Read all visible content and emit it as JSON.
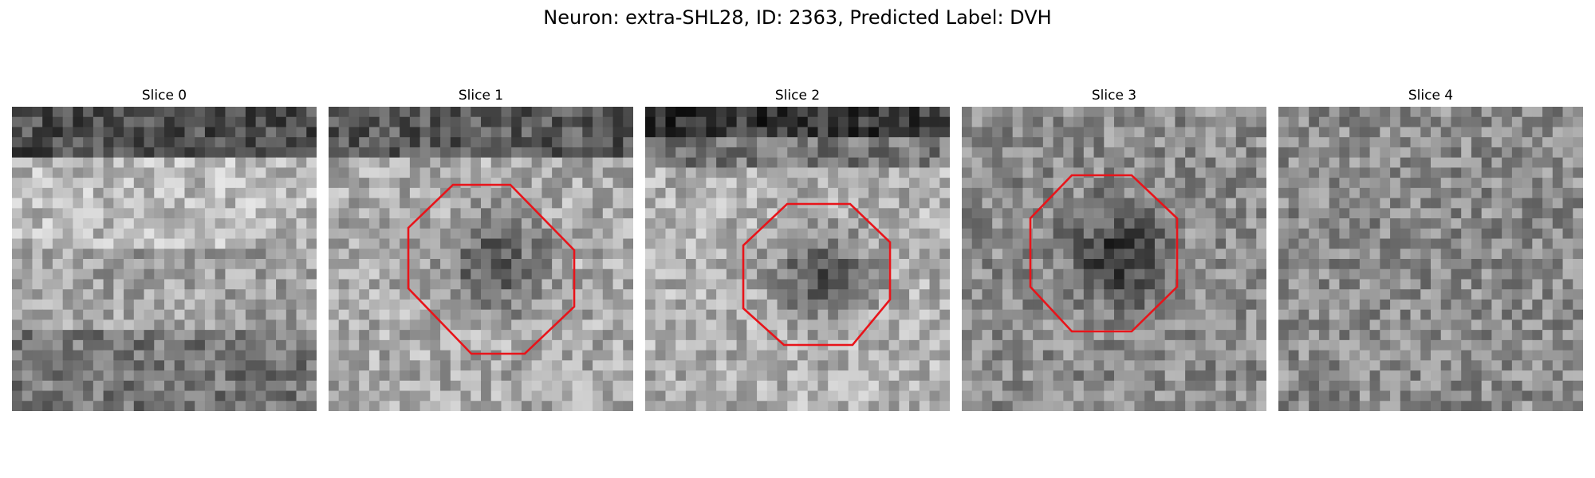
{
  "figure": {
    "title": "Neuron: extra-SHL28, ID: 2363, Predicted Label: DVH"
  },
  "panels": [
    {
      "title": "Slice 0",
      "seed": 11,
      "band": "dark-top-light-middle",
      "dark_center": false,
      "marker": null
    },
    {
      "title": "Slice 1",
      "seed": 23,
      "band": "dark-top",
      "dark_center": true,
      "marker": {
        "shape": "octagon",
        "color": "#e8141a"
      }
    },
    {
      "title": "Slice 2",
      "seed": 37,
      "band": "strong-dark-top",
      "dark_center": true,
      "marker": {
        "shape": "octagon",
        "color": "#e8141a"
      }
    },
    {
      "title": "Slice 3",
      "seed": 51,
      "band": "none",
      "dark_center": true,
      "marker": {
        "shape": "octagon",
        "color": "#e8141a"
      }
    },
    {
      "title": "Slice 4",
      "seed": 67,
      "band": "none",
      "dark_center": false,
      "marker": null
    }
  ]
}
